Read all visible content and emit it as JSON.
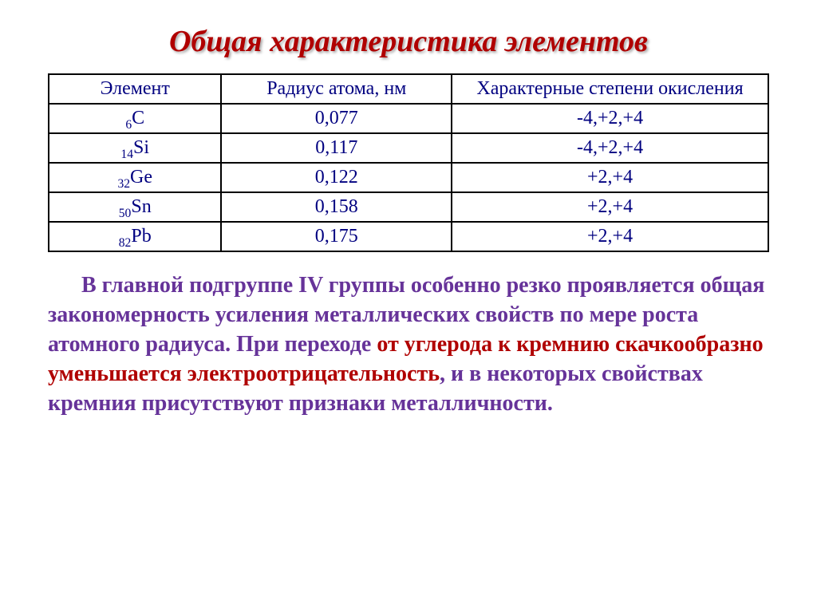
{
  "title": "Общая характеристика элементов",
  "table": {
    "columns": [
      "Элемент",
      "Радиус атома, нм",
      "Характерные степени окисления"
    ],
    "column_widths_pct": [
      24,
      32,
      44
    ],
    "header_color": "#000080",
    "cell_color": "#000080",
    "border_color": "#000000",
    "font_size_pt": 18,
    "rows": [
      {
        "element_sub": "6",
        "element_sym": "C",
        "radius": "0,077",
        "ox": "-4,+2,+4"
      },
      {
        "element_sub": "14",
        "element_sym": "Si",
        "radius": "0,117",
        "ox": "-4,+2,+4"
      },
      {
        "element_sub": "32",
        "element_sym": "Ge",
        "radius": "0,122",
        "ox": "+2,+4"
      },
      {
        "element_sub": "50",
        "element_sym": "Sn",
        "radius": "0,158",
        "ox": "+2,+4"
      },
      {
        "element_sub": "82",
        "element_sym": "Pb",
        "radius": "0,175",
        "ox": "+2,+4"
      }
    ]
  },
  "paragraph": {
    "font_size_pt": 21,
    "font_weight": "bold",
    "line_height": 1.32,
    "colors": {
      "purple": "#663399",
      "red": "#b00000"
    },
    "segments": [
      {
        "color": "purple",
        "text": "В главной подгруппе IV  группы особенно резко проявляется общая закономерность усиления металлических свойств по мере роста атомного радиуса. При переходе "
      },
      {
        "color": "red",
        "text": "от углерода к кремнию скачкообразно уменьшается электроотрицательность"
      },
      {
        "color": "purple",
        "text": ", и в некоторых свойствах кремния присутствуют признаки металличности."
      }
    ]
  },
  "colors": {
    "background": "#ffffff",
    "title": "#b00000",
    "title_shadow": "rgba(0,0,0,0.35)"
  }
}
